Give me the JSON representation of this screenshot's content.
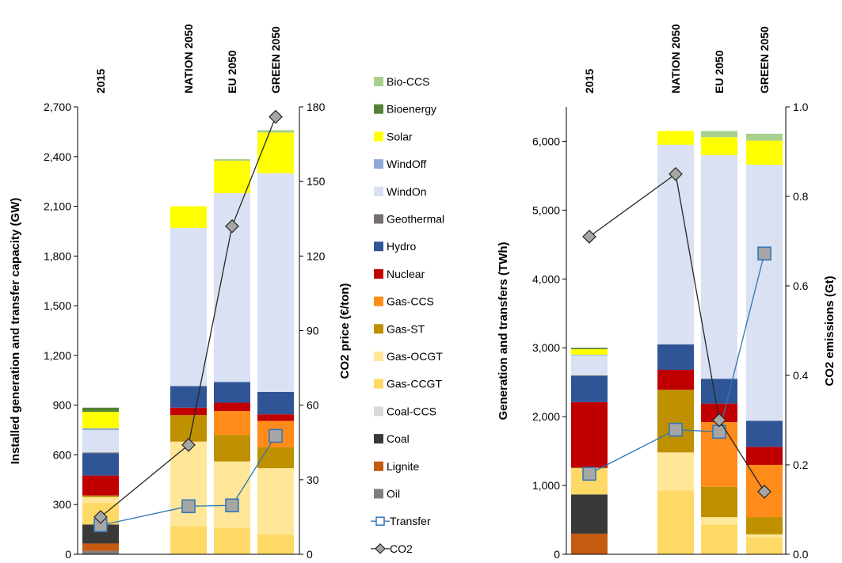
{
  "chart_data": [
    {
      "type": "bar",
      "stacked": true,
      "categories": [
        "2015",
        "NATION 2050",
        "EU 2050",
        "GREEN 2050"
      ],
      "ylabel": "Installed generation and transfer capacity (GW)",
      "ylim": [
        0,
        2700
      ],
      "yticks": [
        0,
        300,
        600,
        900,
        1200,
        1500,
        1800,
        2100,
        2400,
        2700
      ],
      "ytick_labels": [
        "0",
        "300",
        "600",
        "900",
        "1,200",
        "1,500",
        "1,800",
        "2,100",
        "2,400",
        "2,700"
      ],
      "y2label": "CO2 price (€/ton)",
      "y2lim": [
        0,
        180
      ],
      "y2ticks": [
        0,
        30,
        60,
        90,
        120,
        150,
        180
      ],
      "y2tick_labels": [
        "0",
        "30",
        "60",
        "90",
        "120",
        "150",
        "180"
      ],
      "series": [
        {
          "name": "Oil",
          "values": [
            20,
            0,
            0,
            0
          ]
        },
        {
          "name": "Lignite",
          "values": [
            45,
            0,
            0,
            0
          ]
        },
        {
          "name": "Coal",
          "values": [
            115,
            0,
            0,
            0
          ]
        },
        {
          "name": "Coal-CCS",
          "values": [
            0,
            0,
            0,
            0
          ]
        },
        {
          "name": "Gas-CCGT",
          "values": [
            130,
            170,
            160,
            120
          ]
        },
        {
          "name": "Gas-OCGT",
          "values": [
            35,
            510,
            400,
            400
          ]
        },
        {
          "name": "Gas-ST",
          "values": [
            10,
            160,
            160,
            125
          ]
        },
        {
          "name": "Gas-CCS",
          "values": [
            0,
            0,
            145,
            160
          ]
        },
        {
          "name": "Nuclear",
          "values": [
            120,
            45,
            50,
            40
          ]
        },
        {
          "name": "Hydro",
          "values": [
            135,
            130,
            125,
            135
          ]
        },
        {
          "name": "Geothermal",
          "values": [
            5,
            0,
            0,
            0
          ]
        },
        {
          "name": "WindOn",
          "values": [
            135,
            955,
            1140,
            1320
          ]
        },
        {
          "name": "WindOff",
          "values": [
            10,
            0,
            0,
            0
          ]
        },
        {
          "name": "Solar",
          "values": [
            100,
            130,
            195,
            245
          ]
        },
        {
          "name": "Bioenergy",
          "values": [
            25,
            0,
            0,
            0
          ]
        },
        {
          "name": "Bio-CCS",
          "values": [
            0,
            0,
            10,
            15
          ]
        }
      ],
      "lines": [
        {
          "name": "Transfer",
          "axis": "left",
          "values": [
            175,
            290,
            295,
            715
          ]
        },
        {
          "name": "CO2",
          "axis": "right",
          "values": [
            15,
            44,
            132,
            176
          ]
        }
      ]
    },
    {
      "type": "bar",
      "stacked": true,
      "categories": [
        "2015",
        "NATION 2050",
        "EU 2050",
        "GREEN 2050"
      ],
      "ylabel": "Generation  and transfers (TWh)",
      "ylim": [
        0,
        6500
      ],
      "yticks": [
        0,
        1000,
        2000,
        3000,
        4000,
        5000,
        6000
      ],
      "ytick_labels": [
        "0",
        "1,000",
        "2,000",
        "3,000",
        "4,000",
        "5,000",
        "6,000"
      ],
      "y2label": "CO2 emissions (Gt)",
      "y2lim": [
        0,
        1.0
      ],
      "y2ticks": [
        0,
        0.2,
        0.4,
        0.6,
        0.8,
        1.0
      ],
      "y2tick_labels": [
        "0.0",
        "0.2",
        "0.4",
        "0.6",
        "0.8",
        "1.0"
      ],
      "series": [
        {
          "name": "Oil",
          "values": [
            0,
            0,
            0,
            0
          ]
        },
        {
          "name": "Lignite",
          "values": [
            300,
            0,
            0,
            0
          ]
        },
        {
          "name": "Coal",
          "values": [
            570,
            0,
            0,
            0
          ]
        },
        {
          "name": "Coal-CCS",
          "values": [
            0,
            0,
            0,
            0
          ]
        },
        {
          "name": "Gas-CCGT",
          "values": [
            370,
            930,
            430,
            250
          ]
        },
        {
          "name": "Gas-OCGT",
          "values": [
            10,
            550,
            110,
            40
          ]
        },
        {
          "name": "Gas-ST",
          "values": [
            10,
            910,
            440,
            250
          ]
        },
        {
          "name": "Gas-CCS",
          "values": [
            0,
            0,
            940,
            760
          ]
        },
        {
          "name": "Nuclear",
          "values": [
            950,
            290,
            270,
            260
          ]
        },
        {
          "name": "Hydro",
          "values": [
            380,
            370,
            360,
            380
          ]
        },
        {
          "name": "Geothermal",
          "values": [
            10,
            0,
            0,
            0
          ]
        },
        {
          "name": "WindOn",
          "values": [
            290,
            2900,
            3250,
            3720
          ]
        },
        {
          "name": "WindOff",
          "values": [
            10,
            0,
            0,
            0
          ]
        },
        {
          "name": "Solar",
          "values": [
            80,
            200,
            260,
            350
          ]
        },
        {
          "name": "Bioenergy",
          "values": [
            20,
            0,
            0,
            0
          ]
        },
        {
          "name": "Bio-CCS",
          "values": [
            0,
            0,
            90,
            100
          ]
        }
      ],
      "lines": [
        {
          "name": "Transfer",
          "axis": "left",
          "values": [
            1170,
            1810,
            1780,
            4370
          ]
        },
        {
          "name": "CO2",
          "axis": "right",
          "values": [
            0.71,
            0.85,
            0.3,
            0.14
          ]
        }
      ]
    }
  ],
  "legend": {
    "items": [
      {
        "label": "Bio-CCS",
        "kind": "box",
        "color": "#a9d08e"
      },
      {
        "label": "Bioenergy",
        "kind": "box",
        "color": "#548235"
      },
      {
        "label": "Solar",
        "kind": "box",
        "color": "#ffff00"
      },
      {
        "label": "WindOff",
        "kind": "box",
        "color": "#8eaadb"
      },
      {
        "label": "WindOn",
        "kind": "box",
        "color": "#d9e1f2"
      },
      {
        "label": "Geothermal",
        "kind": "box",
        "color": "#767171"
      },
      {
        "label": "Hydro",
        "kind": "box",
        "color": "#2f5597"
      },
      {
        "label": "Nuclear",
        "kind": "box",
        "color": "#c00000"
      },
      {
        "label": "Gas-CCS",
        "kind": "box",
        "color": "#ff8c1a"
      },
      {
        "label": "Gas-ST",
        "kind": "box",
        "color": "#bf9000"
      },
      {
        "label": "Gas-OCGT",
        "kind": "box",
        "color": "#ffe699"
      },
      {
        "label": "Gas-CCGT",
        "kind": "box",
        "color": "#ffd966"
      },
      {
        "label": "Coal-CCS",
        "kind": "box",
        "color": "#d9d9d9"
      },
      {
        "label": "Coal",
        "kind": "box",
        "color": "#3b3838"
      },
      {
        "label": "Lignite",
        "kind": "box",
        "color": "#c55a11"
      },
      {
        "label": "Oil",
        "kind": "box",
        "color": "#7f7f7f"
      },
      {
        "label": "Transfer",
        "kind": "line-square",
        "color": "#2e75b6"
      },
      {
        "label": "CO2",
        "kind": "line-diamond",
        "color": "#262626"
      }
    ]
  },
  "colors": {
    "Oil": "#7f7f7f",
    "Lignite": "#c55a11",
    "Coal": "#3b3838",
    "Coal-CCS": "#d9d9d9",
    "Gas-CCGT": "#ffd966",
    "Gas-OCGT": "#ffe699",
    "Gas-ST": "#bf9000",
    "Gas-CCS": "#ff8c1a",
    "Nuclear": "#c00000",
    "Hydro": "#2f5597",
    "Geothermal": "#767171",
    "WindOn": "#d9e1f2",
    "WindOff": "#8eaadb",
    "Solar": "#ffff00",
    "Bioenergy": "#548235",
    "Bio-CCS": "#a9d08e",
    "transfer_line": "#2e75b6",
    "transfer_marker_fill": "#a6a6a6",
    "co2_line": "#262626",
    "co2_marker_fill": "#a6a6a6"
  }
}
